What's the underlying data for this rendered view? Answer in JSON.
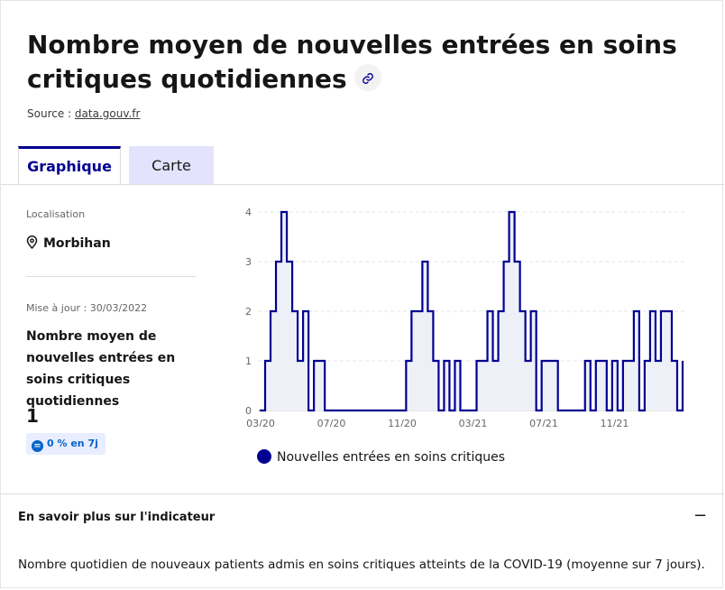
{
  "header": {
    "title": "Nombre moyen de nouvelles entrées en soins critiques quotidiennes",
    "source_label": "Source :",
    "source_link": "data.gouv.fr"
  },
  "tabs": [
    {
      "label": "Graphique",
      "active": true
    },
    {
      "label": "Carte",
      "active": false
    }
  ],
  "info": {
    "location_label": "Localisation",
    "location_value": "Morbihan",
    "update_label": "Mise à jour : 30/03/2022",
    "indicator_name": "Nombre moyen de nouvelles entrées en soins critiques quotidiennes",
    "current_value": "1",
    "trend_badge": "0 % en 7j"
  },
  "chart_data": {
    "type": "line",
    "x_tick_labels": [
      "03/20",
      "07/20",
      "11/20",
      "03/21",
      "07/21",
      "11/21"
    ],
    "y_tick_labels": [
      "0",
      "1",
      "2",
      "3",
      "4"
    ],
    "ylim": [
      0,
      4
    ],
    "grid": true,
    "legend_position": "bottom",
    "series": [
      {
        "name": "Nouvelles entrées en soins critiques",
        "color": "#000091",
        "fill": "#eef0f8",
        "x_start": "03/20",
        "x_end": "03/22",
        "values": [
          0,
          1,
          2,
          3,
          4,
          3,
          2,
          1,
          2,
          0,
          1,
          1,
          0,
          0,
          0,
          0,
          0,
          0,
          0,
          0,
          0,
          0,
          0,
          0,
          0,
          0,
          0,
          1,
          2,
          2,
          3,
          2,
          1,
          0,
          1,
          0,
          1,
          0,
          0,
          0,
          1,
          1,
          2,
          1,
          2,
          3,
          4,
          3,
          2,
          1,
          2,
          0,
          1,
          1,
          1,
          0,
          0,
          0,
          0,
          0,
          1,
          0,
          1,
          1,
          0,
          1,
          0,
          1,
          1,
          2,
          0,
          1,
          2,
          1,
          2,
          2,
          1,
          0,
          1
        ]
      }
    ]
  },
  "accordion": {
    "title": "En savoir plus sur l'indicateur",
    "toggle": "−",
    "description": "Nombre quotidien de nouveaux patients admis en soins critiques atteints de la COVID-19 (moyenne sur 7 jours)."
  }
}
